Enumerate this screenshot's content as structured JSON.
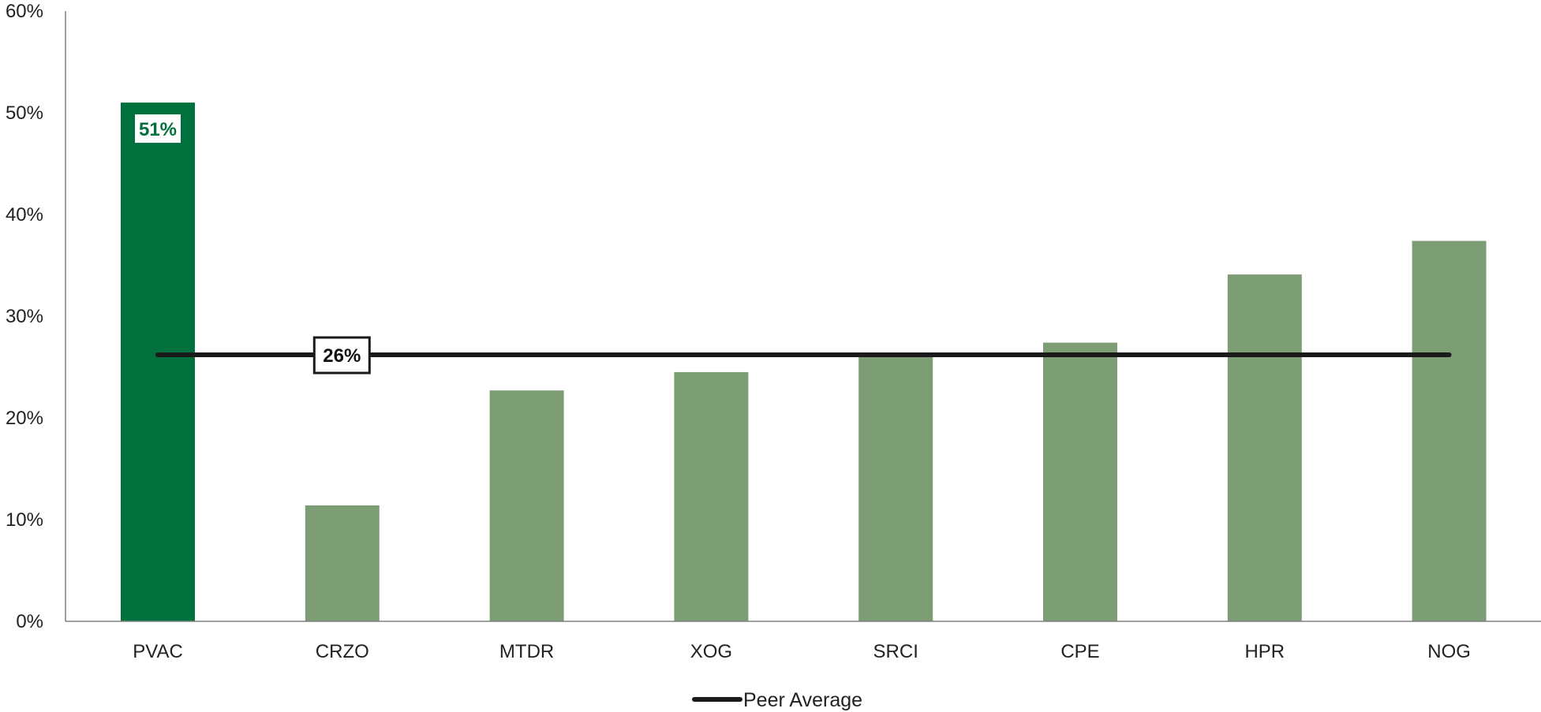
{
  "chart_data": {
    "type": "bar",
    "categories": [
      "PVAC",
      "CRZO",
      "MTDR",
      "XOG",
      "SRCI",
      "CPE",
      "HPR",
      "NOG"
    ],
    "series": [
      {
        "values": [
          51,
          11.4,
          22.7,
          24.5,
          26.2,
          27.4,
          34.1,
          37.4
        ]
      }
    ],
    "highlight_category": "PVAC",
    "bar_labels": {
      "PVAC": "51%"
    },
    "reference_lines": [
      {
        "name": "Peer Average",
        "value": 26.2,
        "label": "26%"
      }
    ],
    "y_ticks": [
      "0%",
      "10%",
      "20%",
      "30%",
      "40%",
      "50%",
      "60%"
    ],
    "ylim": [
      0,
      60
    ],
    "grid": false,
    "legend": {
      "position": "bottom-center",
      "entries": [
        "Peer Average"
      ]
    },
    "colors": {
      "highlight_bar": "#00703c",
      "peer_bar": "#7d9e74",
      "average_line": "#1a1a1a",
      "axis": "#808080"
    }
  }
}
